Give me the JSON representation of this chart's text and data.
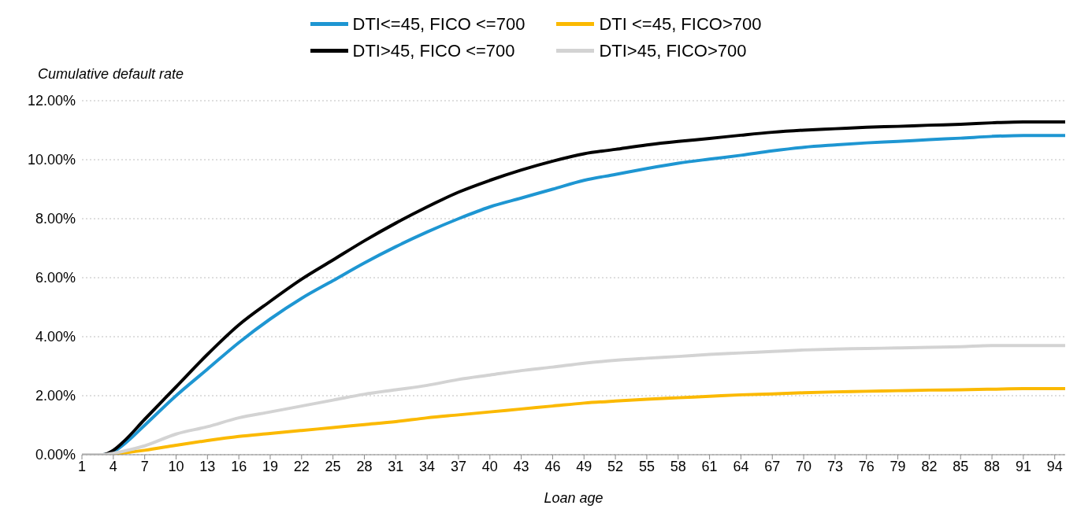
{
  "chart_data": {
    "type": "line",
    "xlabel": "Loan age",
    "ylabel": "Cumulative default rate",
    "x": [
      1,
      3,
      4,
      5,
      7,
      10,
      13,
      16,
      19,
      22,
      25,
      28,
      31,
      34,
      37,
      40,
      43,
      46,
      49,
      52,
      55,
      58,
      61,
      64,
      67,
      70,
      73,
      76,
      79,
      82,
      85,
      88,
      91,
      95
    ],
    "xlim": [
      1,
      95
    ],
    "xticks": [
      1,
      4,
      7,
      10,
      13,
      16,
      19,
      22,
      25,
      28,
      31,
      34,
      37,
      40,
      43,
      46,
      49,
      52,
      55,
      58,
      61,
      64,
      67,
      70,
      73,
      76,
      79,
      82,
      85,
      88,
      91,
      94
    ],
    "ylim": [
      0,
      12
    ],
    "yticks": [
      {
        "value": 0,
        "label": "0.00%"
      },
      {
        "value": 2,
        "label": "2.00%"
      },
      {
        "value": 4,
        "label": "4.00%"
      },
      {
        "value": 6,
        "label": "6.00%"
      },
      {
        "value": 8,
        "label": "8.00%"
      },
      {
        "value": 10,
        "label": "10.00%"
      },
      {
        "value": 12,
        "label": "12.00%"
      }
    ],
    "grid": "y",
    "legend": "top",
    "marker": "none",
    "line_style": "solid",
    "series": [
      {
        "name": "DTI<=45, FICO <=700",
        "color": "#1e96d2",
        "values": [
          0,
          0,
          0.1,
          0.35,
          1.0,
          2.0,
          2.9,
          3.8,
          4.6,
          5.3,
          5.9,
          6.5,
          7.05,
          7.55,
          8.0,
          8.4,
          8.7,
          9.0,
          9.3,
          9.5,
          9.7,
          9.88,
          10.02,
          10.15,
          10.3,
          10.42,
          10.5,
          10.57,
          10.62,
          10.68,
          10.73,
          10.79,
          10.82,
          10.82
        ]
      },
      {
        "name": "DTI <=45, FICO>700",
        "color": "#fbb900",
        "values": [
          0,
          0,
          0.02,
          0.06,
          0.15,
          0.32,
          0.48,
          0.62,
          0.72,
          0.82,
          0.92,
          1.02,
          1.12,
          1.25,
          1.35,
          1.45,
          1.55,
          1.65,
          1.75,
          1.82,
          1.88,
          1.93,
          1.98,
          2.03,
          2.06,
          2.1,
          2.13,
          2.15,
          2.17,
          2.19,
          2.2,
          2.22,
          2.24,
          2.24
        ]
      },
      {
        "name": "DTI>45, FICO <=700",
        "color": "#000000",
        "values": [
          0,
          0,
          0.15,
          0.45,
          1.2,
          2.3,
          3.4,
          4.4,
          5.2,
          5.95,
          6.6,
          7.25,
          7.85,
          8.4,
          8.9,
          9.3,
          9.65,
          9.95,
          10.2,
          10.35,
          10.5,
          10.62,
          10.72,
          10.83,
          10.93,
          11.0,
          11.05,
          11.1,
          11.13,
          11.17,
          11.2,
          11.25,
          11.28,
          11.28
        ]
      },
      {
        "name": "DTI>45, FICO>700",
        "color": "#d3d3d3",
        "values": [
          0,
          0,
          0.05,
          0.12,
          0.3,
          0.7,
          0.95,
          1.25,
          1.45,
          1.65,
          1.85,
          2.05,
          2.2,
          2.35,
          2.55,
          2.7,
          2.85,
          2.97,
          3.1,
          3.2,
          3.27,
          3.33,
          3.4,
          3.45,
          3.5,
          3.55,
          3.58,
          3.6,
          3.62,
          3.64,
          3.66,
          3.7,
          3.7,
          3.7
        ]
      }
    ]
  }
}
